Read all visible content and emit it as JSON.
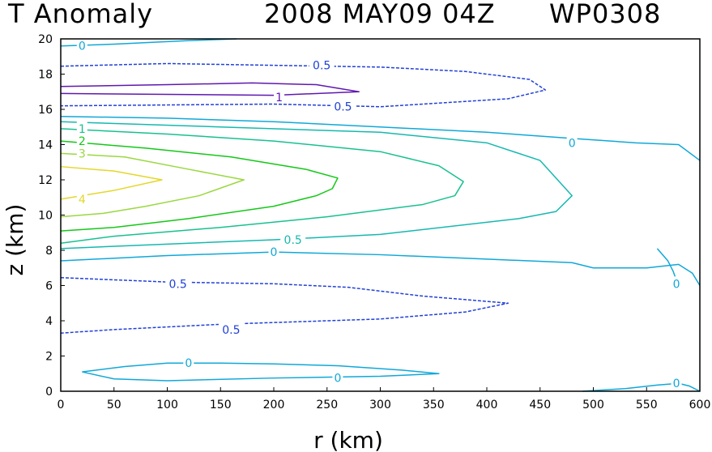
{
  "chart_data": {
    "type": "contour",
    "title_parts": [
      "T Anomaly",
      "2008 MAY09 04Z",
      "WP0308"
    ],
    "xlabel": "r (km)",
    "ylabel": "z (km)",
    "xlim": [
      0,
      600
    ],
    "ylim": [
      0,
      20
    ],
    "xticks": [
      0,
      50,
      100,
      150,
      200,
      250,
      300,
      350,
      400,
      450,
      500,
      550,
      600
    ],
    "yticks": [
      0,
      2,
      4,
      6,
      8,
      10,
      12,
      14,
      16,
      18,
      20
    ],
    "contours": [
      {
        "level": "4",
        "color": "#e3d72a",
        "dashed": false,
        "points": [
          [
            0,
            12.75
          ],
          [
            50,
            12.5
          ],
          [
            95,
            12.0
          ],
          [
            50,
            11.4
          ],
          [
            0,
            10.9
          ]
        ],
        "label": {
          "text": "4",
          "x": 20,
          "y": 10.9
        }
      },
      {
        "level": "3",
        "color": "#9ad840",
        "dashed": false,
        "points": [
          [
            0,
            13.5
          ],
          [
            60,
            13.3
          ],
          [
            120,
            12.6
          ],
          [
            172,
            12.0
          ],
          [
            130,
            11.1
          ],
          [
            80,
            10.5
          ],
          [
            40,
            10.1
          ],
          [
            0,
            9.9
          ]
        ],
        "label": {
          "text": "3",
          "x": 20,
          "y": 13.5
        }
      },
      {
        "level": "2",
        "color": "#14c818",
        "dashed": false,
        "points": [
          [
            0,
            14.2
          ],
          [
            80,
            13.8
          ],
          [
            160,
            13.3
          ],
          [
            230,
            12.6
          ],
          [
            260,
            12.1
          ],
          [
            255,
            11.5
          ],
          [
            240,
            11.1
          ],
          [
            200,
            10.5
          ],
          [
            120,
            9.8
          ],
          [
            50,
            9.3
          ],
          [
            0,
            9.1
          ]
        ],
        "label": {
          "text": "2",
          "x": 20,
          "y": 14.2
        }
      },
      {
        "level": "1",
        "color": "#18c090",
        "dashed": false,
        "points": [
          [
            0,
            14.9
          ],
          [
            100,
            14.6
          ],
          [
            200,
            14.2
          ],
          [
            300,
            13.6
          ],
          [
            355,
            12.8
          ],
          [
            378,
            11.9
          ],
          [
            370,
            11.1
          ],
          [
            340,
            10.6
          ],
          [
            250,
            9.9
          ],
          [
            150,
            9.3
          ],
          [
            50,
            8.8
          ],
          [
            0,
            8.4
          ]
        ],
        "label": {
          "text": "1",
          "x": 20,
          "y": 14.9
        }
      },
      {
        "level": "0.5",
        "color": "#16b8b0",
        "dashed": false,
        "points": [
          [
            0,
            15.3
          ],
          [
            150,
            15.0
          ],
          [
            300,
            14.7
          ],
          [
            400,
            14.1
          ],
          [
            450,
            13.1
          ],
          [
            480,
            11.1
          ],
          [
            465,
            10.2
          ],
          [
            430,
            9.8
          ],
          [
            300,
            8.9
          ],
          [
            200,
            8.6
          ],
          [
            100,
            8.35
          ],
          [
            0,
            8.1
          ]
        ],
        "label": {
          "text": "0.5",
          "x": 218,
          "y": 8.6
        }
      },
      {
        "level": "0",
        "color": "#10a8d8",
        "dashed": false,
        "points": [
          [
            0,
            15.6
          ],
          [
            100,
            15.5
          ],
          [
            200,
            15.3
          ],
          [
            300,
            15.0
          ],
          [
            400,
            14.7
          ],
          [
            480,
            14.35
          ],
          [
            540,
            14.1
          ],
          [
            580,
            14.0
          ],
          [
            600,
            13.1
          ]
        ],
        "label": {
          "text": "0",
          "x": 480,
          "y": 14.1
        }
      },
      {
        "level": "0",
        "color": "#10a8d8",
        "dashed": false,
        "points": [
          [
            0,
            7.4
          ],
          [
            100,
            7.7
          ],
          [
            200,
            7.9
          ],
          [
            300,
            7.75
          ],
          [
            400,
            7.5
          ],
          [
            480,
            7.3
          ],
          [
            500,
            7.0
          ],
          [
            550,
            7.0
          ],
          [
            580,
            7.2
          ],
          [
            593,
            6.7
          ],
          [
            600,
            6.0
          ]
        ],
        "label": {
          "text": "0",
          "x": 200,
          "y": 7.9
        }
      },
      {
        "level": "0",
        "color": "#10a8d8",
        "dashed": false,
        "points": [
          [
            560,
            8.1
          ],
          [
            570,
            7.4
          ],
          [
            575,
            6.8
          ],
          [
            578,
            6.3
          ]
        ],
        "label": {
          "text": "0",
          "x": 578,
          "y": 6.1
        }
      },
      {
        "level": "0",
        "color": "#10a8d8",
        "dashed": false,
        "points": [
          [
            0,
            19.6
          ],
          [
            50,
            19.7
          ],
          [
            120,
            19.9
          ],
          [
            165,
            20.0
          ]
        ],
        "label": {
          "text": "0",
          "x": 20,
          "y": 19.6
        }
      },
      {
        "level": "-0.5",
        "color": "#2040d8",
        "dashed": true,
        "points": [
          [
            0,
            18.45
          ],
          [
            100,
            18.6
          ],
          [
            200,
            18.5
          ],
          [
            300,
            18.4
          ],
          [
            380,
            18.15
          ],
          [
            440,
            17.7
          ],
          [
            455,
            17.1
          ],
          [
            420,
            16.6
          ],
          [
            300,
            16.15
          ],
          [
            200,
            16.3
          ],
          [
            100,
            16.25
          ],
          [
            0,
            16.2
          ]
        ],
        "label": {
          "text": "0.5",
          "x": 245,
          "y": 18.5
        }
      },
      {
        "level": "-0.5",
        "color": "#2040d8",
        "dashed": true,
        "points": [
          [
            0,
            6.45
          ],
          [
            100,
            6.2
          ],
          [
            200,
            6.1
          ],
          [
            270,
            5.9
          ],
          [
            340,
            5.4
          ],
          [
            420,
            5.0
          ],
          [
            380,
            4.5
          ],
          [
            300,
            4.1
          ],
          [
            150,
            3.8
          ],
          [
            50,
            3.5
          ],
          [
            0,
            3.3
          ]
        ],
        "label": {
          "text": "0.5",
          "x": 110,
          "y": 6.1
        }
      },
      {
        "level": "-1",
        "color": "#6018b0",
        "dashed": false,
        "points": [
          [
            0,
            17.3
          ],
          [
            100,
            17.4
          ],
          [
            180,
            17.5
          ],
          [
            240,
            17.4
          ],
          [
            280,
            17.0
          ],
          [
            200,
            16.8
          ],
          [
            100,
            16.85
          ],
          [
            0,
            16.9
          ]
        ],
        "label": {
          "text": "1",
          "x": 205,
          "y": 16.7
        }
      },
      {
        "level": "0",
        "color": "#10a8d8",
        "dashed": false,
        "points": [
          [
            20,
            1.1
          ],
          [
            60,
            1.4
          ],
          [
            100,
            1.6
          ],
          [
            150,
            1.6
          ],
          [
            200,
            1.55
          ],
          [
            260,
            1.45
          ],
          [
            320,
            1.2
          ],
          [
            355,
            1.0
          ],
          [
            300,
            0.85
          ],
          [
            200,
            0.75
          ],
          [
            100,
            0.6
          ],
          [
            50,
            0.7
          ],
          [
            20,
            1.1
          ]
        ],
        "label": {
          "text": "0",
          "x": 120,
          "y": 1.6
        }
      },
      {
        "level": "0",
        "color": "#10a8d8",
        "dashed": false,
        "points": [
          [
            490,
            0
          ],
          [
            530,
            0.15
          ],
          [
            560,
            0.35
          ],
          [
            580,
            0.45
          ],
          [
            590,
            0.3
          ],
          [
            600,
            0.0
          ]
        ],
        "label": {
          "text": "0",
          "x": 578,
          "y": 0.45
        }
      }
    ],
    "extra_labels": [
      {
        "text": "0",
        "x": 260,
        "y": 0.75,
        "color": "#10a8d8"
      },
      {
        "text": "0.5",
        "x": 265,
        "y": 16.15,
        "color": "#2040d8"
      },
      {
        "text": "0.5",
        "x": 160,
        "y": 3.5,
        "color": "#2040d8"
      }
    ]
  }
}
